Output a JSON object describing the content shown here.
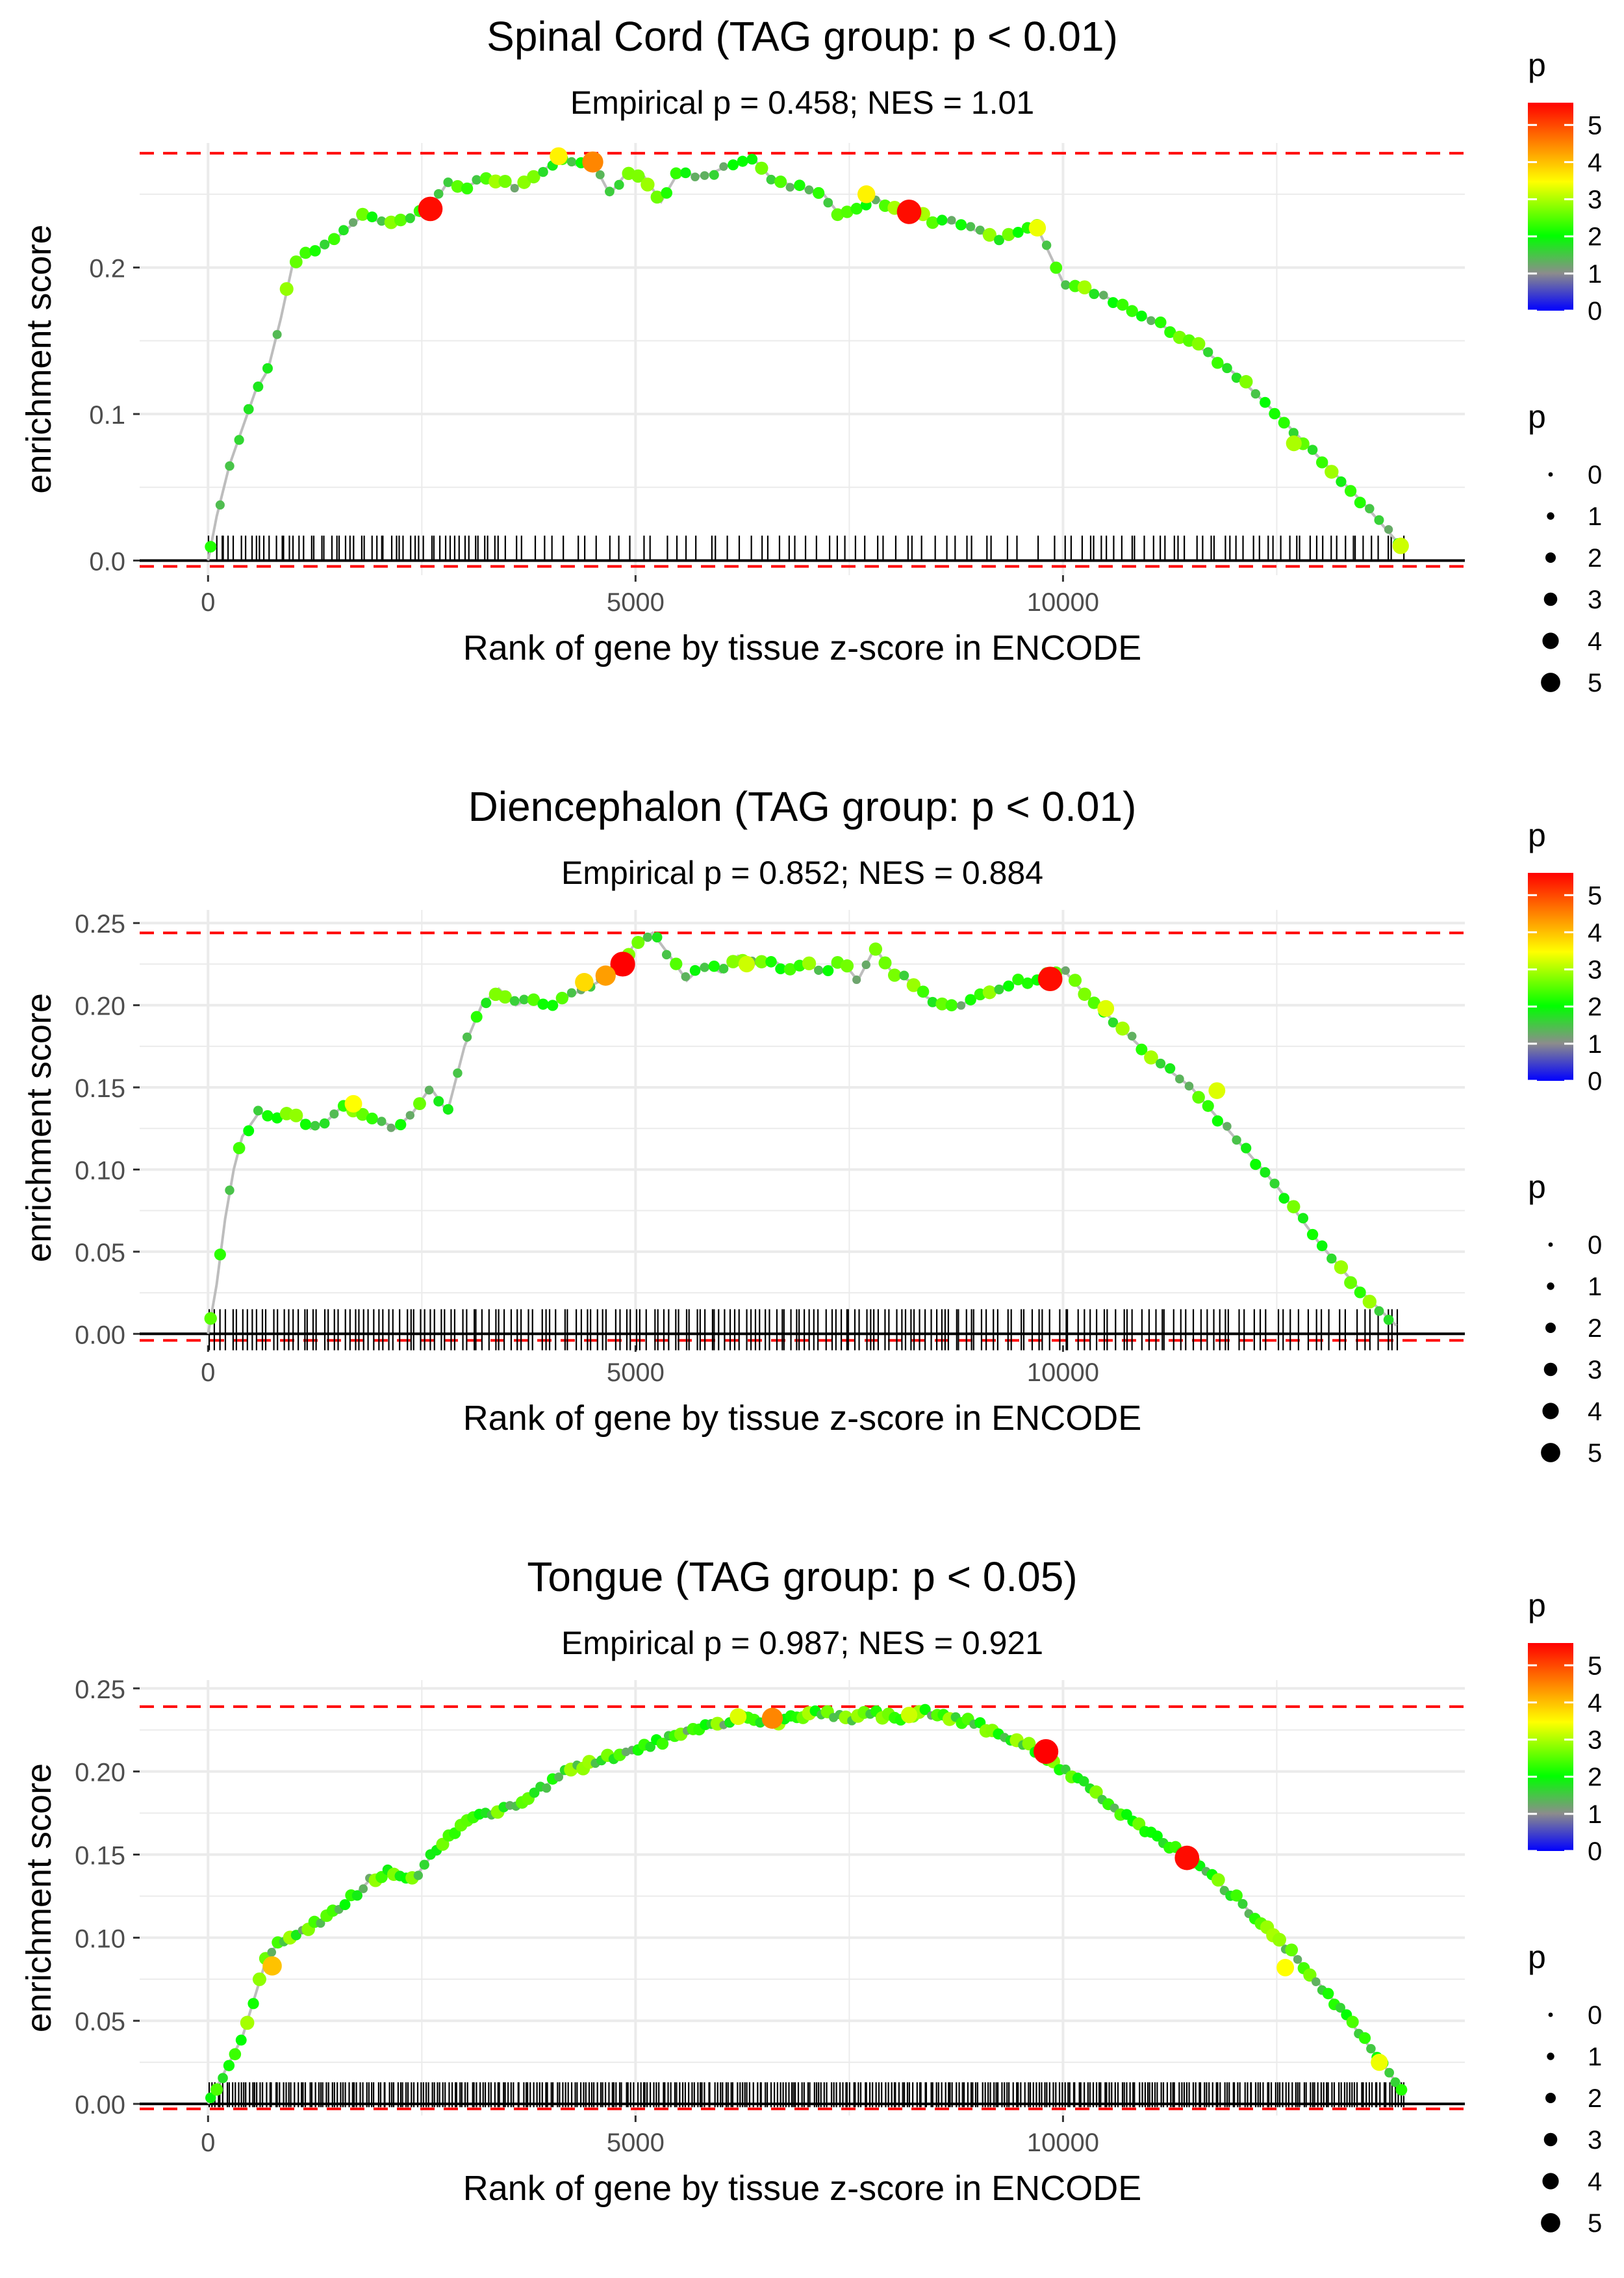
{
  "legend": {
    "color_title": "p",
    "size_title": "p",
    "color_ticks": [
      "0",
      "1",
      "2",
      "3",
      "4",
      "5"
    ],
    "size_ticks": [
      "0",
      "1",
      "2",
      "3",
      "4",
      "5"
    ],
    "colors": {
      "low": "#0000ff",
      "mid": "#00ff00",
      "midlow": "#888888",
      "high": "#ffff00",
      "top": "#ff0000"
    }
  },
  "chart_data": [
    {
      "type": "line",
      "title": "Spinal Cord (TAG group: p < 0.01)",
      "subtitle": "Empirical p = 0.458; NES = 1.01",
      "xlabel": "Rank of gene by tissue z-score in ENCODE",
      "ylabel": "enrichment score",
      "xlim": [
        -800,
        14700
      ],
      "ylim": [
        -0.01,
        0.285
      ],
      "xticks": [
        0,
        5000,
        10000
      ],
      "xtick_labels": [
        "0",
        "5000",
        "10000"
      ],
      "yticks": [
        0.0,
        0.1,
        0.2
      ],
      "ytick_labels": [
        "0.0",
        "0.1",
        "0.2"
      ],
      "max_es": 0.278,
      "min_es": -0.004,
      "rug_y": [
        0.0,
        0.017
      ],
      "curve": [
        [
          0,
          0
        ],
        [
          100,
          0.03
        ],
        [
          250,
          0.065
        ],
        [
          400,
          0.09
        ],
        [
          550,
          0.115
        ],
        [
          700,
          0.13
        ],
        [
          850,
          0.165
        ],
        [
          1000,
          0.205
        ],
        [
          1200,
          0.21
        ],
        [
          1500,
          0.22
        ],
        [
          1800,
          0.235
        ],
        [
          2100,
          0.23
        ],
        [
          2400,
          0.235
        ],
        [
          2600,
          0.24
        ],
        [
          2800,
          0.258
        ],
        [
          3000,
          0.255
        ],
        [
          3300,
          0.262
        ],
        [
          3600,
          0.255
        ],
        [
          3900,
          0.265
        ],
        [
          4100,
          0.275
        ],
        [
          4300,
          0.27
        ],
        [
          4500,
          0.272
        ],
        [
          4700,
          0.25
        ],
        [
          4900,
          0.265
        ],
        [
          5100,
          0.262
        ],
        [
          5300,
          0.245
        ],
        [
          5500,
          0.265
        ],
        [
          5800,
          0.262
        ],
        [
          6100,
          0.27
        ],
        [
          6400,
          0.273
        ],
        [
          6600,
          0.26
        ],
        [
          6900,
          0.255
        ],
        [
          7200,
          0.25
        ],
        [
          7400,
          0.235
        ],
        [
          7600,
          0.24
        ],
        [
          7800,
          0.248
        ],
        [
          8000,
          0.24
        ],
        [
          8200,
          0.238
        ],
        [
          8500,
          0.232
        ],
        [
          8800,
          0.23
        ],
        [
          9100,
          0.222
        ],
        [
          9300,
          0.22
        ],
        [
          9500,
          0.225
        ],
        [
          9700,
          0.227
        ],
        [
          10000,
          0.19
        ],
        [
          10500,
          0.18
        ],
        [
          11000,
          0.165
        ],
        [
          11500,
          0.15
        ],
        [
          12000,
          0.128
        ],
        [
          12500,
          0.1
        ],
        [
          13000,
          0.07
        ],
        [
          13500,
          0.04
        ],
        [
          13950,
          0.01
        ]
      ],
      "highlights": [
        {
          "x": 2600,
          "y": 0.24,
          "p": 5.5
        },
        {
          "x": 4500,
          "y": 0.272,
          "p": 4.5
        },
        {
          "x": 8200,
          "y": 0.238,
          "p": 5.5
        },
        {
          "x": 7700,
          "y": 0.25,
          "p": 3.6
        },
        {
          "x": 4100,
          "y": 0.276,
          "p": 3.6
        },
        {
          "x": 9700,
          "y": 0.227,
          "p": 3.4
        },
        {
          "x": 13950,
          "y": 0.01,
          "p": 3.2
        },
        {
          "x": 12700,
          "y": 0.08,
          "p": 3.0
        }
      ],
      "rug": {
        "segments": [
          [
            0,
            3500,
            60
          ],
          [
            3500,
            5800,
            18
          ],
          [
            5800,
            9500,
            32
          ],
          [
            9500,
            10000,
            2
          ],
          [
            10000,
            14000,
            48
          ]
        ]
      },
      "dot_density": 9
    },
    {
      "type": "line",
      "title": "Diencephalon (TAG group: p < 0.01)",
      "subtitle": "Empirical p = 0.852; NES = 0.884",
      "xlabel": "Rank of gene by tissue z-score in ENCODE",
      "ylabel": "enrichment score",
      "xlim": [
        -800,
        14700
      ],
      "ylim": [
        -0.007,
        0.258
      ],
      "xticks": [
        0,
        5000,
        10000
      ],
      "xtick_labels": [
        "0",
        "5000",
        "10000"
      ],
      "yticks": [
        0.0,
        0.05,
        0.1,
        0.15,
        0.2,
        0.25
      ],
      "ytick_labels": [
        "0.00",
        "0.05",
        "0.10",
        "0.15",
        "0.20",
        "0.25"
      ],
      "max_es": 0.244,
      "min_es": -0.004,
      "rug_y": [
        -0.01,
        0.015
      ],
      "curve": [
        [
          0,
          0
        ],
        [
          100,
          0.03
        ],
        [
          200,
          0.07
        ],
        [
          300,
          0.1
        ],
        [
          400,
          0.12
        ],
        [
          600,
          0.135
        ],
        [
          800,
          0.13
        ],
        [
          1000,
          0.135
        ],
        [
          1200,
          0.125
        ],
        [
          1400,
          0.13
        ],
        [
          1600,
          0.14
        ],
        [
          1800,
          0.135
        ],
        [
          2000,
          0.13
        ],
        [
          2200,
          0.125
        ],
        [
          2400,
          0.135
        ],
        [
          2600,
          0.15
        ],
        [
          2800,
          0.135
        ],
        [
          3000,
          0.175
        ],
        [
          3200,
          0.2
        ],
        [
          3400,
          0.21
        ],
        [
          3600,
          0.2
        ],
        [
          3800,
          0.205
        ],
        [
          4000,
          0.2
        ],
        [
          4200,
          0.205
        ],
        [
          4400,
          0.21
        ],
        [
          4600,
          0.215
        ],
        [
          4800,
          0.223
        ],
        [
          5000,
          0.238
        ],
        [
          5200,
          0.244
        ],
        [
          5400,
          0.23
        ],
        [
          5600,
          0.215
        ],
        [
          5800,
          0.225
        ],
        [
          6000,
          0.22
        ],
        [
          6200,
          0.23
        ],
        [
          6400,
          0.225
        ],
        [
          6600,
          0.228
        ],
        [
          6800,
          0.22
        ],
        [
          7000,
          0.225
        ],
        [
          7200,
          0.22
        ],
        [
          7400,
          0.228
        ],
        [
          7600,
          0.215
        ],
        [
          7800,
          0.235
        ],
        [
          8000,
          0.22
        ],
        [
          8200,
          0.215
        ],
        [
          8400,
          0.205
        ],
        [
          8600,
          0.2
        ],
        [
          8800,
          0.2
        ],
        [
          9000,
          0.205
        ],
        [
          9200,
          0.21
        ],
        [
          9400,
          0.213
        ],
        [
          9600,
          0.215
        ],
        [
          9800,
          0.218
        ],
        [
          10000,
          0.222
        ],
        [
          10200,
          0.21
        ],
        [
          10500,
          0.195
        ],
        [
          11000,
          0.17
        ],
        [
          11500,
          0.15
        ],
        [
          12000,
          0.12
        ],
        [
          12500,
          0.09
        ],
        [
          13000,
          0.055
        ],
        [
          13500,
          0.025
        ],
        [
          13900,
          0.005
        ]
      ],
      "highlights": [
        {
          "x": 4850,
          "y": 0.225,
          "p": 5.6
        },
        {
          "x": 9850,
          "y": 0.216,
          "p": 5.5
        },
        {
          "x": 4650,
          "y": 0.218,
          "p": 4.3
        },
        {
          "x": 4400,
          "y": 0.214,
          "p": 3.8
        },
        {
          "x": 1700,
          "y": 0.14,
          "p": 3.5
        },
        {
          "x": 10500,
          "y": 0.198,
          "p": 3.3
        },
        {
          "x": 11800,
          "y": 0.148,
          "p": 3.3
        },
        {
          "x": 6300,
          "y": 0.225,
          "p": 3.2
        }
      ],
      "rug": {
        "segments": [
          [
            0,
            3000,
            50
          ],
          [
            3000,
            5500,
            38
          ],
          [
            5500,
            9000,
            60
          ],
          [
            9000,
            12000,
            40
          ],
          [
            12000,
            14000,
            22
          ]
        ]
      },
      "dot_density": 9
    },
    {
      "type": "line",
      "title": "Tongue (TAG group: p < 0.05)",
      "subtitle": "Empirical p = 0.987; NES = 0.921",
      "xlabel": "Rank of gene by tissue z-score in ENCODE",
      "ylabel": "enrichment score",
      "xlim": [
        -800,
        14700
      ],
      "ylim": [
        -0.007,
        0.255
      ],
      "xticks": [
        0,
        5000,
        10000
      ],
      "xtick_labels": [
        "0",
        "5000",
        "10000"
      ],
      "yticks": [
        0.0,
        0.05,
        0.1,
        0.15,
        0.2,
        0.25
      ],
      "ytick_labels": [
        "0.00",
        "0.05",
        "0.10",
        "0.15",
        "0.20",
        "0.25"
      ],
      "max_es": 0.239,
      "min_es": -0.003,
      "rug_y": [
        -0.002,
        0.013
      ],
      "curve": [
        [
          0,
          0
        ],
        [
          200,
          0.02
        ],
        [
          400,
          0.04
        ],
        [
          550,
          0.065
        ],
        [
          700,
          0.09
        ],
        [
          900,
          0.1
        ],
        [
          1100,
          0.105
        ],
        [
          1300,
          0.11
        ],
        [
          1600,
          0.12
        ],
        [
          1900,
          0.135
        ],
        [
          2100,
          0.14
        ],
        [
          2400,
          0.135
        ],
        [
          2700,
          0.155
        ],
        [
          3000,
          0.17
        ],
        [
          3300,
          0.175
        ],
        [
          3600,
          0.18
        ],
        [
          3900,
          0.19
        ],
        [
          4200,
          0.2
        ],
        [
          4500,
          0.205
        ],
        [
          4800,
          0.21
        ],
        [
          5100,
          0.215
        ],
        [
          5400,
          0.22
        ],
        [
          5700,
          0.225
        ],
        [
          6000,
          0.228
        ],
        [
          6300,
          0.232
        ],
        [
          6600,
          0.23
        ],
        [
          6900,
          0.233
        ],
        [
          7200,
          0.236
        ],
        [
          7500,
          0.232
        ],
        [
          7800,
          0.235
        ],
        [
          8100,
          0.232
        ],
        [
          8400,
          0.236
        ],
        [
          8700,
          0.233
        ],
        [
          9000,
          0.228
        ],
        [
          9300,
          0.222
        ],
        [
          9600,
          0.215
        ],
        [
          9900,
          0.205
        ],
        [
          10200,
          0.195
        ],
        [
          10500,
          0.183
        ],
        [
          10800,
          0.17
        ],
        [
          11100,
          0.16
        ],
        [
          11400,
          0.15
        ],
        [
          11700,
          0.138
        ],
        [
          12000,
          0.125
        ],
        [
          12300,
          0.11
        ],
        [
          12600,
          0.095
        ],
        [
          12900,
          0.078
        ],
        [
          13200,
          0.06
        ],
        [
          13500,
          0.04
        ],
        [
          13800,
          0.02
        ],
        [
          14000,
          0.005
        ]
      ],
      "highlights": [
        {
          "x": 9800,
          "y": 0.212,
          "p": 5.6
        },
        {
          "x": 11450,
          "y": 0.148,
          "p": 5.5
        },
        {
          "x": 6600,
          "y": 0.232,
          "p": 4.5
        },
        {
          "x": 750,
          "y": 0.083,
          "p": 4.0
        },
        {
          "x": 12600,
          "y": 0.082,
          "p": 3.5
        },
        {
          "x": 13700,
          "y": 0.025,
          "p": 3.4
        },
        {
          "x": 6200,
          "y": 0.233,
          "p": 3.3
        },
        {
          "x": 8200,
          "y": 0.234,
          "p": 3.2
        }
      ],
      "rug": {
        "segments": [
          [
            0,
            14000,
            420
          ]
        ]
      },
      "dot_density": 14
    }
  ]
}
